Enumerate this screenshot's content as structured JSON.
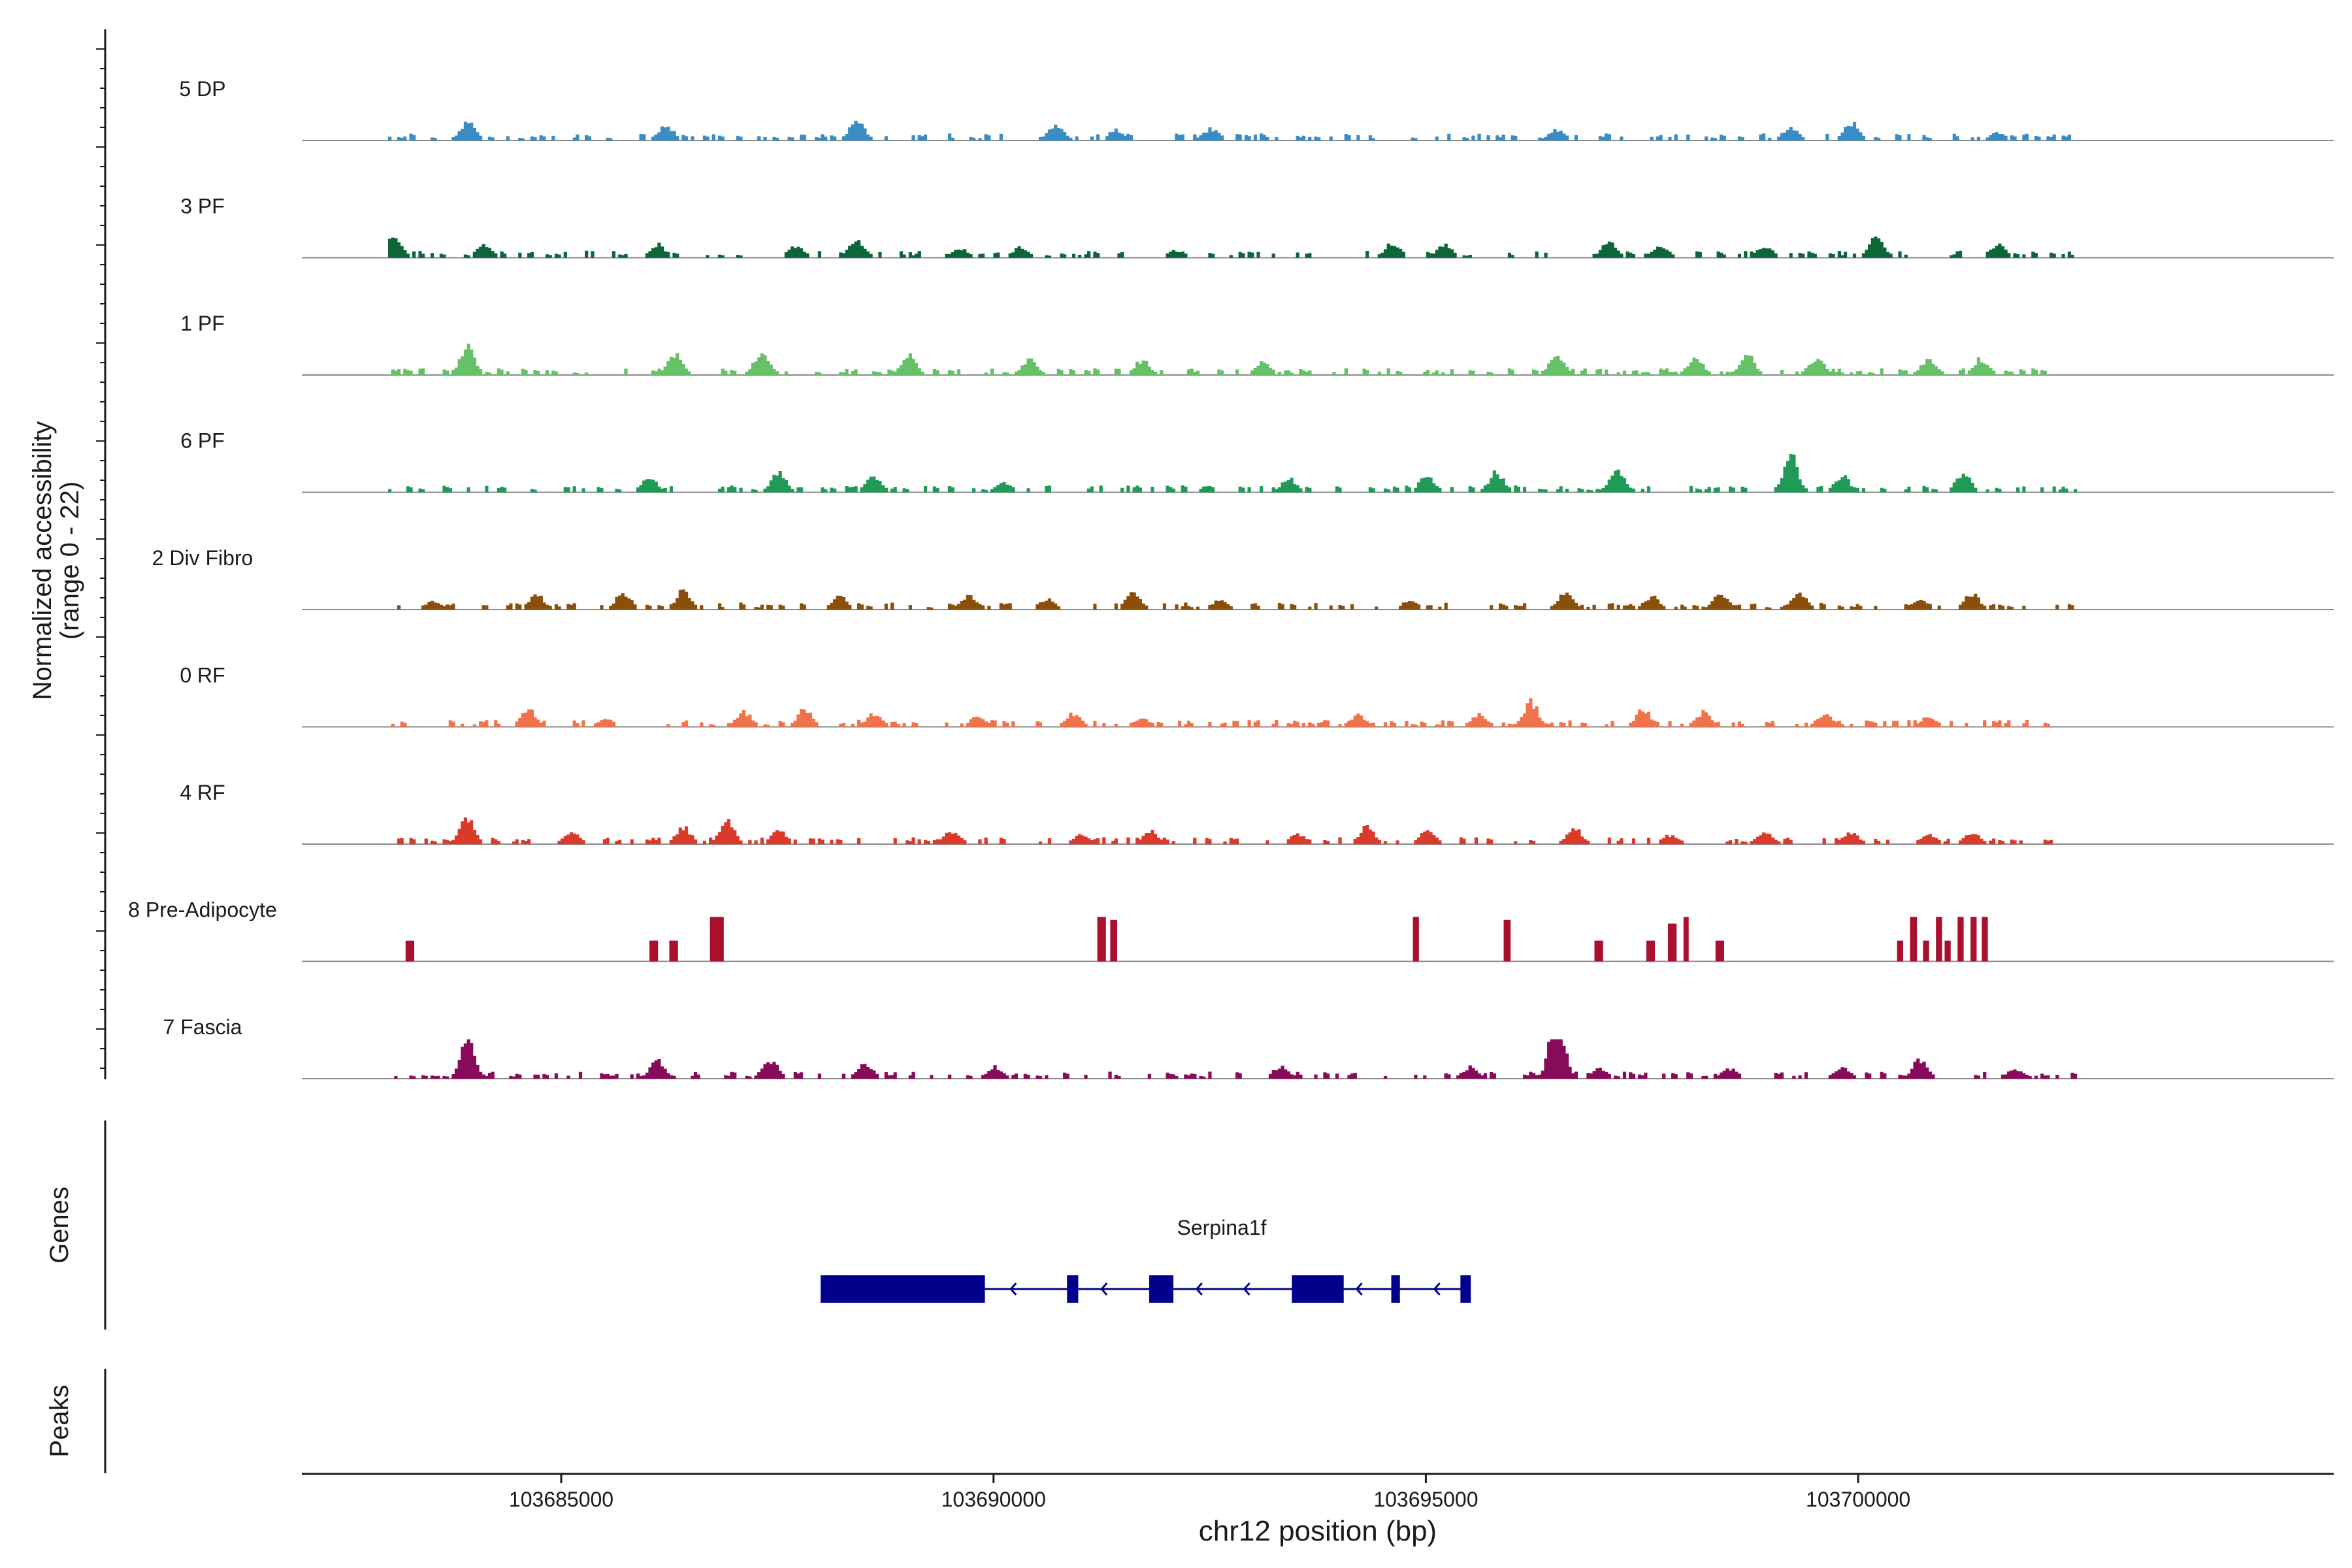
{
  "chart_data": {
    "type": "coverage",
    "y_axis_title_line1": "Normalized accessibility",
    "y_axis_title_line2": "(range 0 - 22)",
    "ylim": [
      0,
      22
    ],
    "x_axis_title": "chr12 position (bp)",
    "xlim": [
      103682000,
      103705500
    ],
    "x_ticks": [
      103685000,
      103690000,
      103695000,
      103700000
    ],
    "x_tick_labels": [
      "103685000",
      "103690000",
      "103695000",
      "103700000"
    ],
    "track_start": 103683000,
    "track_end": 103702500,
    "tracks": [
      {
        "label": "5 DP",
        "color": "#3A8CC4",
        "seed": 11,
        "peaks": [
          [
            103683900,
            12
          ],
          [
            103686200,
            9
          ],
          [
            103688400,
            13
          ],
          [
            103690700,
            10
          ],
          [
            103691400,
            6
          ],
          [
            103692500,
            7
          ],
          [
            103696500,
            6
          ],
          [
            103699200,
            8
          ],
          [
            103699900,
            11
          ],
          [
            103701600,
            4
          ]
        ]
      },
      {
        "label": "3 PF",
        "color": "#0C6638",
        "seed": 23,
        "peaks": [
          [
            103683050,
            13
          ],
          [
            103684100,
            8
          ],
          [
            103686100,
            8
          ],
          [
            103687700,
            7
          ],
          [
            103688400,
            12
          ],
          [
            103689600,
            5
          ],
          [
            103690300,
            6
          ],
          [
            103692100,
            4
          ],
          [
            103694600,
            9
          ],
          [
            103695200,
            8
          ],
          [
            103697100,
            9
          ],
          [
            103697700,
            7
          ],
          [
            103698900,
            7
          ],
          [
            103700200,
            13
          ],
          [
            103701600,
            8
          ]
        ]
      },
      {
        "label": "1 PF",
        "color": "#66C068",
        "seed": 37,
        "peaks": [
          [
            103683900,
            20
          ],
          [
            103686300,
            14
          ],
          [
            103687300,
            15
          ],
          [
            103689000,
            12
          ],
          [
            103690400,
            10
          ],
          [
            103691700,
            9
          ],
          [
            103693100,
            8
          ],
          [
            103696500,
            14
          ],
          [
            103698100,
            11
          ],
          [
            103698700,
            13
          ],
          [
            103699500,
            11
          ],
          [
            103700800,
            10
          ],
          [
            103701400,
            10
          ]
        ]
      },
      {
        "label": "6 PF",
        "color": "#219A58",
        "seed": 41,
        "peaks": [
          [
            103686000,
            9
          ],
          [
            103687500,
            12
          ],
          [
            103688600,
            10
          ],
          [
            103690100,
            6
          ],
          [
            103693400,
            8
          ],
          [
            103695000,
            11
          ],
          [
            103695800,
            13
          ],
          [
            103697200,
            14
          ],
          [
            103699200,
            26
          ],
          [
            103699800,
            10
          ],
          [
            103701200,
            13
          ]
        ]
      },
      {
        "label": "2 Div Fibro",
        "color": "#8A4F0A",
        "seed": 53,
        "peaks": [
          [
            103683500,
            5
          ],
          [
            103684700,
            9
          ],
          [
            103685700,
            11
          ],
          [
            103686400,
            12
          ],
          [
            103688200,
            8
          ],
          [
            103689700,
            9
          ],
          [
            103690600,
            6
          ],
          [
            103691600,
            10
          ],
          [
            103692600,
            5
          ],
          [
            103694800,
            5
          ],
          [
            103696600,
            11
          ],
          [
            103697600,
            8
          ],
          [
            103698400,
            10
          ],
          [
            103699300,
            11
          ],
          [
            103700700,
            7
          ],
          [
            103701300,
            10
          ]
        ]
      },
      {
        "label": "0 RF",
        "color": "#F0734B",
        "seed": 67,
        "peaks": [
          [
            103684600,
            11
          ],
          [
            103685500,
            4
          ],
          [
            103687100,
            9
          ],
          [
            103687800,
            11
          ],
          [
            103688600,
            8
          ],
          [
            103689800,
            6
          ],
          [
            103690900,
            8
          ],
          [
            103691700,
            5
          ],
          [
            103694200,
            7
          ],
          [
            103695600,
            8
          ],
          [
            103696200,
            16
          ],
          [
            103697500,
            11
          ],
          [
            103698200,
            9
          ],
          [
            103699600,
            8
          ],
          [
            103700800,
            6
          ]
        ]
      },
      {
        "label": "4 RF",
        "color": "#D93A2A",
        "seed": 73,
        "peaks": [
          [
            103683900,
            17
          ],
          [
            103685100,
            7
          ],
          [
            103686400,
            10
          ],
          [
            103686900,
            14
          ],
          [
            103687500,
            8
          ],
          [
            103689500,
            8
          ],
          [
            103691000,
            5
          ],
          [
            103691800,
            8
          ],
          [
            103693500,
            6
          ],
          [
            103694300,
            11
          ],
          [
            103695000,
            8
          ],
          [
            103696700,
            10
          ],
          [
            103697800,
            5
          ],
          [
            103698900,
            8
          ],
          [
            103699900,
            7
          ],
          [
            103700800,
            5
          ],
          [
            103701300,
            7
          ]
        ]
      },
      {
        "label": "8 Pre-Adipocyte",
        "color": "#A8102E",
        "seed": 0,
        "blocks": [
          [
            103683200,
            103683300,
            22
          ],
          [
            103686020,
            103686120,
            22
          ],
          [
            103686250,
            103686350,
            22
          ],
          [
            103686720,
            103686880,
            47
          ],
          [
            103691200,
            103691300,
            47
          ],
          [
            103691350,
            103691430,
            44
          ],
          [
            103694850,
            103694920,
            47
          ],
          [
            103695900,
            103695980,
            44
          ],
          [
            103696950,
            103697050,
            22
          ],
          [
            103697550,
            103697650,
            22
          ],
          [
            103697800,
            103697900,
            40
          ],
          [
            103697980,
            103698040,
            47
          ],
          [
            103698350,
            103698450,
            22
          ],
          [
            103700450,
            103700520,
            22
          ],
          [
            103700600,
            103700680,
            47
          ],
          [
            103700750,
            103700820,
            22
          ],
          [
            103700900,
            103700970,
            47
          ],
          [
            103701000,
            103701070,
            22
          ],
          [
            103701150,
            103701220,
            47
          ],
          [
            103701300,
            103701370,
            47
          ],
          [
            103701430,
            103701500,
            47
          ]
        ]
      },
      {
        "label": "7 Fascia",
        "color": "#880A5A",
        "seed": 89,
        "peaks": [
          [
            103683900,
            25
          ],
          [
            103686100,
            11
          ],
          [
            103687400,
            12
          ],
          [
            103688500,
            9
          ],
          [
            103690000,
            7
          ],
          [
            103693300,
            7
          ],
          [
            103695500,
            7
          ],
          [
            103696500,
            45
          ],
          [
            103697000,
            6
          ],
          [
            103698500,
            6
          ],
          [
            103699800,
            7
          ],
          [
            103700700,
            12
          ],
          [
            103701800,
            6
          ]
        ]
      }
    ],
    "genes_label": "Genes",
    "peaks_label": "Peaks",
    "gene": {
      "name": "Serpina1f",
      "color": "#00008B",
      "start": 103688000,
      "end": 103695500,
      "strand": "-",
      "exons": [
        [
          103688000,
          103689900
        ],
        [
          103690850,
          103690980
        ],
        [
          103691800,
          103692080
        ],
        [
          103693450,
          103694050
        ],
        [
          103694600,
          103694700
        ],
        [
          103695400,
          103695520
        ]
      ],
      "arrows": [
        103690200,
        103691250,
        103692350,
        103692900,
        103694200,
        103695100
      ]
    }
  }
}
